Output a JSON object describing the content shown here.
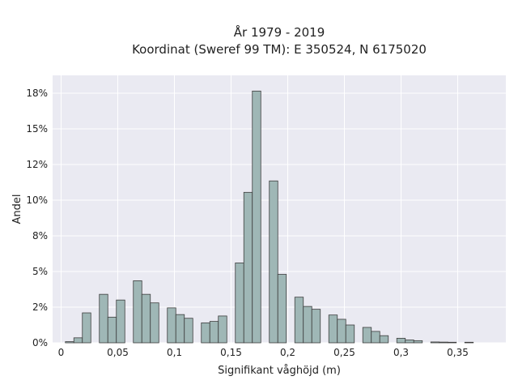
{
  "chart_data": {
    "type": "bar",
    "title_line1": "År 1979 - 2019",
    "title_line2": "Koordinat (Sweref 99 TM): E 350524, N 6175020",
    "xlabel": "Signifikant våghöjd (m)",
    "ylabel": "Andel",
    "xlim": [
      -0.0075,
      0.3925
    ],
    "ylim": [
      0,
      0.1875
    ],
    "bin_width": 0.0075,
    "x_ticks": [
      0,
      0.05,
      0.1,
      0.15,
      0.2,
      0.25,
      0.3,
      0.35
    ],
    "x_tick_labels": [
      "0",
      "0,05",
      "0,1",
      "0,15",
      "0,2",
      "0,25",
      "0,3",
      "0,35"
    ],
    "y_ticks": [
      0,
      0.025,
      0.05,
      0.075,
      0.1,
      0.125,
      0.15,
      0.175
    ],
    "y_tick_labels": [
      "0%",
      "2%",
      "5%",
      "8%",
      "10%",
      "12%",
      "15%",
      "18%"
    ],
    "grid": true,
    "bars": [
      {
        "x": 0.0075,
        "value": 0.0008
      },
      {
        "x": 0.015,
        "value": 0.0035
      },
      {
        "x": 0.0225,
        "value": 0.021
      },
      {
        "x": 0.0375,
        "value": 0.034
      },
      {
        "x": 0.045,
        "value": 0.018
      },
      {
        "x": 0.0525,
        "value": 0.03
      },
      {
        "x": 0.0675,
        "value": 0.0435
      },
      {
        "x": 0.075,
        "value": 0.034
      },
      {
        "x": 0.0825,
        "value": 0.028
      },
      {
        "x": 0.0975,
        "value": 0.0245
      },
      {
        "x": 0.105,
        "value": 0.0198
      },
      {
        "x": 0.1125,
        "value": 0.0172
      },
      {
        "x": 0.1275,
        "value": 0.014
      },
      {
        "x": 0.135,
        "value": 0.015
      },
      {
        "x": 0.1425,
        "value": 0.0188
      },
      {
        "x": 0.1575,
        "value": 0.056
      },
      {
        "x": 0.165,
        "value": 0.1055
      },
      {
        "x": 0.1725,
        "value": 0.1765
      },
      {
        "x": 0.1875,
        "value": 0.1135
      },
      {
        "x": 0.195,
        "value": 0.048
      },
      {
        "x": 0.21,
        "value": 0.032
      },
      {
        "x": 0.2175,
        "value": 0.0255
      },
      {
        "x": 0.225,
        "value": 0.0235
      },
      {
        "x": 0.24,
        "value": 0.0195
      },
      {
        "x": 0.2475,
        "value": 0.0165
      },
      {
        "x": 0.255,
        "value": 0.0125
      },
      {
        "x": 0.27,
        "value": 0.0108
      },
      {
        "x": 0.2775,
        "value": 0.008
      },
      {
        "x": 0.285,
        "value": 0.005
      },
      {
        "x": 0.3,
        "value": 0.0032
      },
      {
        "x": 0.3075,
        "value": 0.002
      },
      {
        "x": 0.315,
        "value": 0.0015
      },
      {
        "x": 0.33,
        "value": 0.0006
      },
      {
        "x": 0.3375,
        "value": 0.0005
      },
      {
        "x": 0.345,
        "value": 0.0004
      },
      {
        "x": 0.36,
        "value": 0.0004
      }
    ],
    "colors": {
      "bar_fill": "#9fb7b6",
      "bar_edge": "#3d3d3d",
      "plot_bg": "#eaeaf2",
      "grid": "#ffffff"
    }
  }
}
